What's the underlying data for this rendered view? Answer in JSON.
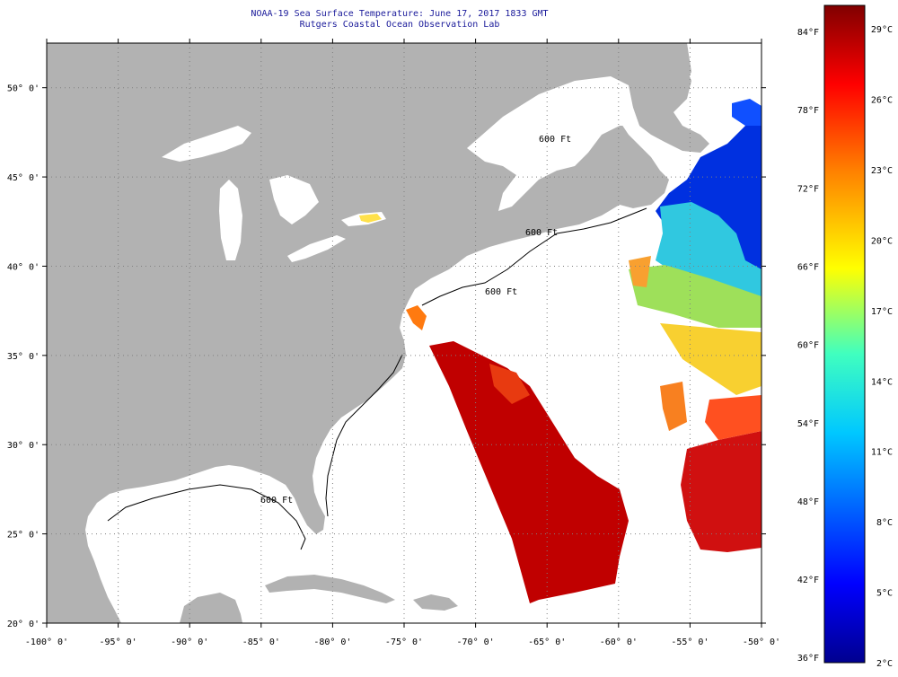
{
  "header": {
    "title": "NOAA-19 Sea Surface Temperature:  June 17, 2017 1833 GMT",
    "subtitle": "Rutgers Coastal Ocean Observation Lab"
  },
  "map": {
    "lon_ticks": [
      "-100° 0'",
      "-95° 0'",
      "-90° 0'",
      "-85° 0'",
      "-80° 0'",
      "-75° 0'",
      "-70° 0'",
      "-65° 0'",
      "-60° 0'",
      "-55° 0'",
      "-50° 0'"
    ],
    "lon_values": [
      -100,
      -95,
      -90,
      -85,
      -80,
      -75,
      -70,
      -65,
      -60,
      -55,
      -50
    ],
    "lat_ticks": [
      "20° 0'",
      "25° 0'",
      "30° 0'",
      "35° 0'",
      "40° 0'",
      "45° 0'",
      "50° 0'"
    ],
    "lat_values": [
      20,
      25,
      30,
      35,
      40,
      45,
      50
    ],
    "lon_range": [
      -100,
      -50
    ],
    "lat_range": [
      20,
      52.5
    ],
    "contour_labels": [
      "600 Ft",
      "600 Ft",
      "600 Ft",
      "600 Ft"
    ],
    "colors": {
      "land": "#b2b2b2",
      "ocean_nodata": "#ffffff",
      "grid": "#808080"
    }
  },
  "colorbar": {
    "fahrenheit_labels": [
      "84°F",
      "78°F",
      "72°F",
      "66°F",
      "60°F",
      "54°F",
      "48°F",
      "42°F",
      "36°F"
    ],
    "fahrenheit_values": [
      84,
      78,
      72,
      66,
      60,
      54,
      48,
      42,
      36
    ],
    "celsius_labels": [
      "29°C",
      "26°C",
      "23°C",
      "20°C",
      "17°C",
      "14°C",
      "11°C",
      "8°C",
      "5°C",
      "2°C"
    ],
    "celsius_values": [
      29,
      26,
      23,
      20,
      17,
      14,
      11,
      8,
      5,
      2
    ],
    "range_celsius": [
      2,
      30
    ]
  }
}
